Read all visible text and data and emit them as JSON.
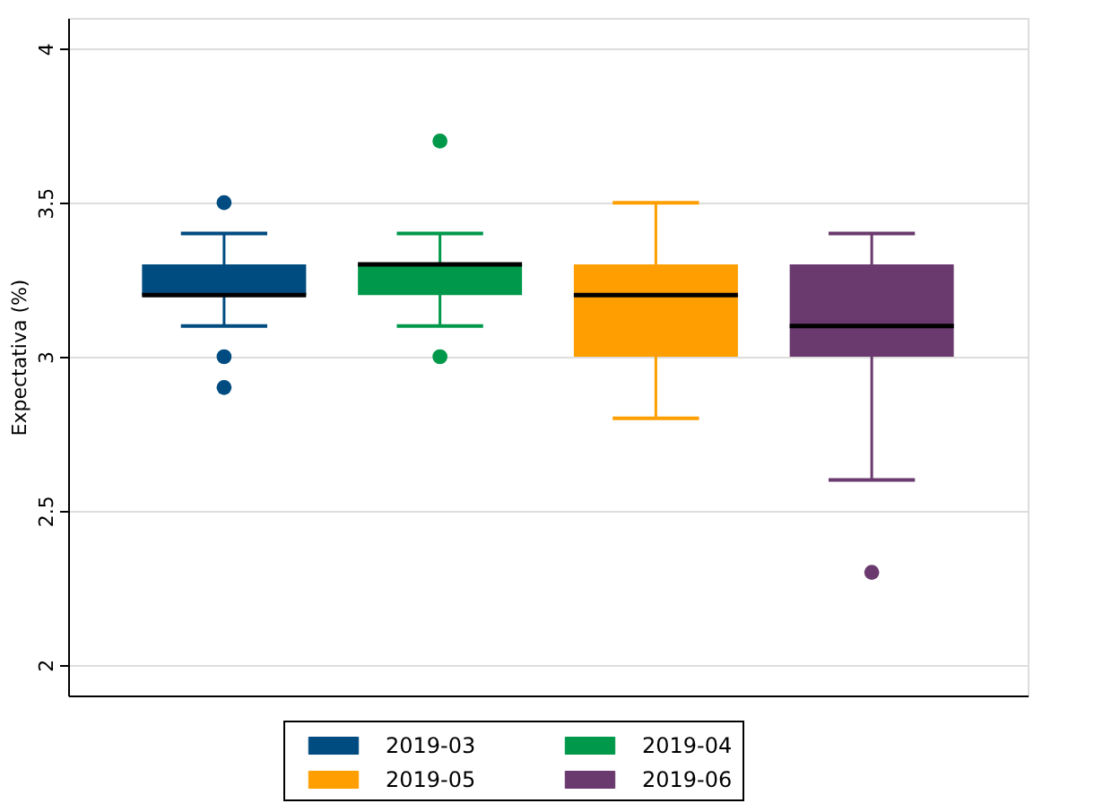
{
  "chart_data": {
    "type": "box",
    "ylabel": "Expectativa (%)",
    "categories": [
      null
    ],
    "series": [
      {
        "name": "2019-03",
        "color": "#004b80",
        "boxes": [
          {
            "low": 3.1,
            "q1": 3.2,
            "median": 3.2,
            "q3": 3.3,
            "high": 3.4,
            "outliers": [
              3.5,
              3.0,
              2.9
            ]
          }
        ]
      },
      {
        "name": "2019-04",
        "color": "#00984a",
        "boxes": [
          {
            "low": 3.1,
            "q1": 3.2,
            "median": 3.3,
            "q3": 3.3,
            "high": 3.4,
            "outliers": [
              3.7,
              3.0
            ]
          }
        ]
      },
      {
        "name": "2019-05",
        "color": "#ff9e00",
        "boxes": [
          {
            "low": 2.8,
            "q1": 3.0,
            "median": 3.2,
            "q3": 3.3,
            "high": 3.5
          }
        ]
      },
      {
        "name": "2019-06",
        "color": "#6a3a6e",
        "boxes": [
          {
            "low": 2.6,
            "q1": 3.0,
            "median": 3.1,
            "q3": 3.3,
            "high": 3.4,
            "outliers": [
              2.3
            ]
          }
        ]
      }
    ],
    "ylim": [
      1.9,
      4.1
    ],
    "yticks": [
      2,
      2.5,
      3,
      3.5,
      4
    ],
    "grid": "y",
    "legend": "bottom",
    "tick_labels": "y"
  }
}
